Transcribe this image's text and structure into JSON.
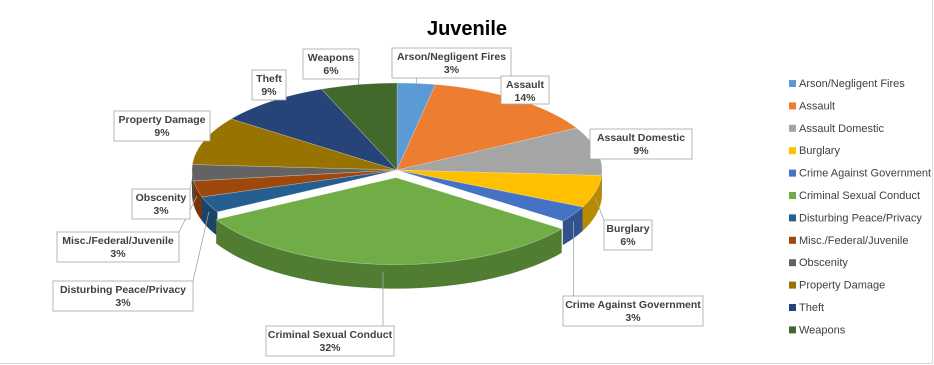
{
  "chart_data": {
    "type": "pie",
    "title": "Juvenile",
    "categories": [
      "Arson/Negligent Fires",
      "Assault",
      "Assault Domestic",
      "Burglary",
      "Crime Against Government",
      "Criminal Sexual Conduct",
      "Disturbing Peace/Privacy",
      "Misc./Federal/Juvenile",
      "Obscenity",
      "Property Damage",
      "Theft",
      "Weapons"
    ],
    "values": [
      3,
      14,
      9,
      6,
      3,
      32,
      3,
      3,
      3,
      9,
      9,
      6
    ],
    "value_labels": [
      "3%",
      "14%",
      "9%",
      "6%",
      "3%",
      "32%",
      "3%",
      "3%",
      "3%",
      "9%",
      "9%",
      "6%"
    ],
    "colors": [
      "#5b9bd5",
      "#ed7d31",
      "#a5a5a5",
      "#ffc000",
      "#4472c4",
      "#70ad47",
      "#255e91",
      "#9e480e",
      "#636363",
      "#997300",
      "#264478",
      "#43682b"
    ],
    "style": "3d",
    "exploded_slice": "Criminal Sexual Conduct",
    "legend_position": "right"
  }
}
